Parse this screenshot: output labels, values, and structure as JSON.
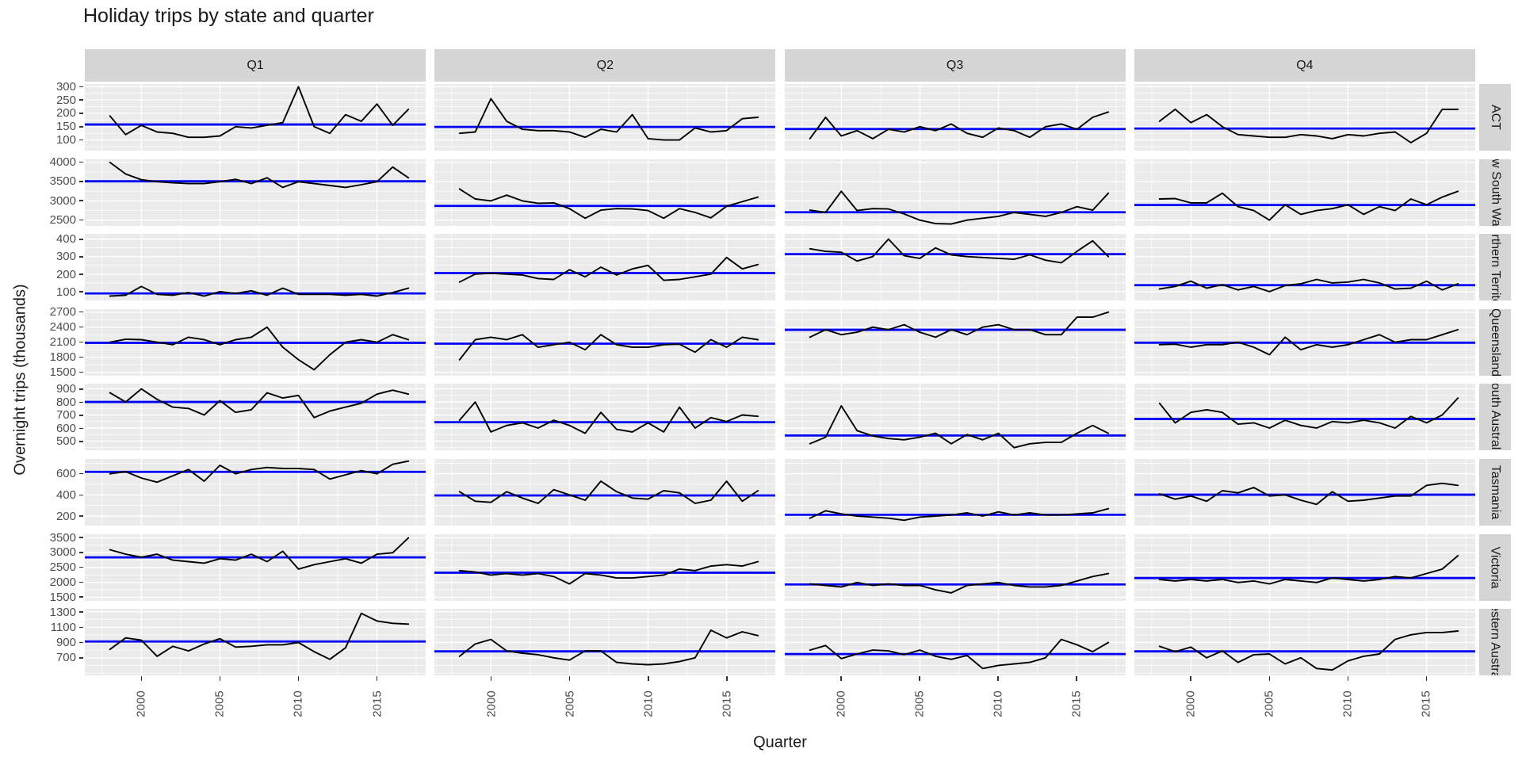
{
  "chart_data": {
    "type": "line",
    "title": "Holiday trips by state and quarter",
    "xlabel": "Quarter",
    "ylabel": "Overnight trips (thousands)",
    "facet_columns": [
      "Q1",
      "Q2",
      "Q3",
      "Q4"
    ],
    "x_years": [
      1998,
      1999,
      2000,
      2001,
      2002,
      2003,
      2004,
      2005,
      2006,
      2007,
      2008,
      2009,
      2010,
      2011,
      2012,
      2013,
      2014,
      2015,
      2016,
      2017
    ],
    "x_ticks": [
      2000,
      2005,
      2010,
      2015
    ],
    "grid": true,
    "legend": "none",
    "panel_bg": "#ebebeb",
    "strip_bg": "#d5d5d5",
    "grid_color": "#ffffff",
    "line_color": "#000000",
    "mean_line_color": "#0000f5",
    "tick_text_color": "#4d4d4d",
    "rows": [
      {
        "state": "ACT",
        "strip_label": "ACT",
        "ylim": [
          60,
          310
        ],
        "yticks": [
          100,
          150,
          200,
          250,
          300
        ],
        "series": {
          "Q1": {
            "mean": 158,
            "values": [
              190,
              120,
              155,
              130,
              125,
              110,
              110,
              115,
              150,
              145,
              155,
              165,
              300,
              150,
              125,
              195,
              170,
              235,
              155,
              215
            ]
          },
          "Q2": {
            "mean": 149,
            "values": [
              125,
              130,
              255,
              170,
              140,
              135,
              135,
              130,
              110,
              140,
              130,
              195,
              105,
              100,
              100,
              145,
              130,
              135,
              180,
              185
            ]
          },
          "Q3": {
            "mean": 141,
            "values": [
              105,
              185,
              115,
              135,
              105,
              140,
              130,
              150,
              135,
              160,
              125,
              110,
              145,
              135,
              110,
              150,
              160,
              140,
              185,
              205
            ]
          },
          "Q4": {
            "mean": 143,
            "values": [
              170,
              215,
              165,
              195,
              150,
              120,
              115,
              110,
              110,
              120,
              115,
              105,
              120,
              115,
              125,
              130,
              90,
              125,
              215,
              215
            ]
          }
        }
      },
      {
        "state": "New South Wales",
        "strip_label": "New South Wales",
        "ylim": [
          2350,
          4080
        ],
        "yticks": [
          2500,
          3000,
          3500,
          4000
        ],
        "series": {
          "Q1": {
            "mean": 3510,
            "values": [
              4000,
              3700,
              3550,
              3500,
              3470,
              3450,
              3450,
              3500,
              3560,
              3450,
              3600,
              3350,
              3500,
              3450,
              3400,
              3350,
              3420,
              3500,
              3880,
              3600
            ]
          },
          "Q2": {
            "mean": 2870,
            "values": [
              3310,
              3050,
              3000,
              3150,
              3000,
              2940,
              2950,
              2800,
              2550,
              2760,
              2800,
              2790,
              2750,
              2550,
              2800,
              2700,
              2560,
              2860,
              2980,
              3100
            ]
          },
          "Q3": {
            "mean": 2706,
            "values": [
              2760,
              2700,
              3250,
              2750,
              2800,
              2790,
              2660,
              2500,
              2410,
              2400,
              2500,
              2550,
              2600,
              2700,
              2650,
              2600,
              2700,
              2850,
              2760,
              3200
            ]
          },
          "Q4": {
            "mean": 2893,
            "values": [
              3050,
              3060,
              2950,
              2950,
              3200,
              2850,
              2750,
              2500,
              2900,
              2650,
              2750,
              2800,
              2900,
              2650,
              2850,
              2750,
              3050,
              2900,
              3100,
              3250
            ]
          }
        }
      },
      {
        "state": "Northern Territory",
        "strip_label": "Northern Territory",
        "ylim": [
          50,
          430
        ],
        "yticks": [
          100,
          200,
          300,
          400
        ],
        "series": {
          "Q1": {
            "mean": 90,
            "values": [
              75,
              80,
              130,
              85,
              80,
              95,
              75,
              100,
              90,
              105,
              80,
              120,
              85,
              85,
              85,
              80,
              85,
              75,
              95,
              120
            ]
          },
          "Q2": {
            "mean": 206,
            "values": [
              155,
              200,
              205,
              200,
              195,
              175,
              170,
              225,
              185,
              240,
              195,
              230,
              250,
              165,
              170,
              185,
              200,
              295,
              230,
              255
            ]
          },
          "Q3": {
            "mean": 314,
            "values": [
              345,
              330,
              325,
              275,
              300,
              400,
              305,
              290,
              350,
              310,
              300,
              295,
              290,
              285,
              310,
              280,
              265,
              330,
              390,
              300
            ]
          },
          "Q4": {
            "mean": 137,
            "values": [
              115,
              130,
              160,
              120,
              140,
              110,
              130,
              100,
              135,
              145,
              170,
              150,
              155,
              170,
              150,
              115,
              120,
              160,
              110,
              145
            ]
          }
        }
      },
      {
        "state": "Queensland",
        "strip_label": "Queensland",
        "ylim": [
          1430,
          2760
        ],
        "yticks": [
          1500,
          1800,
          2100,
          2400,
          2700
        ],
        "series": {
          "Q1": {
            "mean": 2088,
            "values": [
              2100,
              2160,
              2150,
              2100,
              2050,
              2200,
              2150,
              2050,
              2150,
              2200,
              2400,
              2000,
              1750,
              1550,
              1850,
              2100,
              2150,
              2100,
              2250,
              2150
            ]
          },
          "Q2": {
            "mean": 2071,
            "values": [
              1750,
              2150,
              2200,
              2150,
              2250,
              2000,
              2050,
              2100,
              1950,
              2250,
              2050,
              2000,
              2000,
              2050,
              2060,
              1900,
              2150,
              2000,
              2200,
              2150
            ]
          },
          "Q3": {
            "mean": 2347,
            "values": [
              2200,
              2350,
              2250,
              2300,
              2400,
              2350,
              2450,
              2300,
              2200,
              2350,
              2250,
              2400,
              2450,
              2350,
              2350,
              2250,
              2250,
              2600,
              2600,
              2700
            ]
          },
          "Q4": {
            "mean": 2090,
            "values": [
              2050,
              2060,
              2000,
              2050,
              2050,
              2100,
              2000,
              1850,
              2200,
              1950,
              2050,
              2000,
              2050,
              2150,
              2250,
              2100,
              2150,
              2150,
              2250,
              2350
            ]
          }
        }
      },
      {
        "state": "South Australia",
        "strip_label": "South Australia",
        "ylim": [
          430,
          940
        ],
        "yticks": [
          500,
          600,
          700,
          800,
          900
        ],
        "series": {
          "Q1": {
            "mean": 800,
            "values": [
              870,
              800,
              900,
              820,
              760,
              750,
              700,
              810,
              720,
              740,
              870,
              830,
              850,
              680,
              730,
              760,
              790,
              860,
              890,
              860
            ]
          },
          "Q2": {
            "mean": 645,
            "values": [
              660,
              800,
              570,
              620,
              640,
              600,
              660,
              620,
              560,
              720,
              590,
              570,
              640,
              570,
              760,
              600,
              680,
              650,
              700,
              690
            ]
          },
          "Q3": {
            "mean": 543,
            "values": [
              480,
              530,
              770,
              580,
              540,
              520,
              510,
              530,
              560,
              480,
              550,
              510,
              560,
              450,
              480,
              490,
              490,
              560,
              620,
              560
            ]
          },
          "Q4": {
            "mean": 670,
            "values": [
              790,
              640,
              720,
              740,
              720,
              630,
              640,
              600,
              660,
              620,
              600,
              650,
              640,
              660,
              640,
              600,
              690,
              640,
              700,
              830
            ]
          }
        }
      },
      {
        "state": "Tasmania",
        "strip_label": "Tasmania",
        "ylim": [
          110,
          740
        ],
        "yticks": [
          200,
          400,
          600
        ],
        "series": {
          "Q1": {
            "mean": 618,
            "values": [
              600,
              620,
              560,
              520,
              580,
              640,
              530,
              680,
              600,
              640,
              660,
              650,
              650,
              640,
              550,
              590,
              630,
              600,
              690,
              720
            ]
          },
          "Q2": {
            "mean": 395,
            "values": [
              430,
              340,
              330,
              430,
              370,
              320,
              450,
              400,
              350,
              530,
              430,
              370,
              360,
              440,
              420,
              320,
              350,
              530,
              340,
              440
            ]
          },
          "Q3": {
            "mean": 212,
            "values": [
              180,
              250,
              220,
              200,
              190,
              180,
              160,
              190,
              200,
              210,
              230,
              200,
              240,
              210,
              230,
              210,
              210,
              220,
              230,
              270
            ]
          },
          "Q4": {
            "mean": 402,
            "values": [
              410,
              360,
              390,
              340,
              440,
              420,
              470,
              390,
              400,
              350,
              310,
              430,
              340,
              350,
              370,
              390,
              390,
              490,
              510,
              490
            ]
          }
        }
      },
      {
        "state": "Victoria",
        "strip_label": "Victoria",
        "ylim": [
          1380,
          3620
        ],
        "yticks": [
          1500,
          2000,
          2500,
          3000,
          3500
        ],
        "series": {
          "Q1": {
            "mean": 2843,
            "values": [
              3100,
              2950,
              2850,
              2950,
              2750,
              2700,
              2650,
              2800,
              2750,
              2950,
              2700,
              3050,
              2450,
              2600,
              2700,
              2800,
              2650,
              2950,
              3000,
              3500
            ]
          },
          "Q2": {
            "mean": 2328,
            "values": [
              2400,
              2350,
              2250,
              2300,
              2250,
              2300,
              2200,
              1950,
              2300,
              2250,
              2150,
              2150,
              2200,
              2250,
              2450,
              2400,
              2550,
              2600,
              2550,
              2700
            ]
          },
          "Q3": {
            "mean": 1933,
            "values": [
              1950,
              1900,
              1850,
              2000,
              1900,
              1950,
              1900,
              1900,
              1750,
              1650,
              1900,
              1950,
              2000,
              1900,
              1850,
              1850,
              1900,
              2050,
              2200,
              2300
            ]
          },
          "Q4": {
            "mean": 2148,
            "values": [
              2100,
              2050,
              2100,
              2050,
              2100,
              2000,
              2050,
              1950,
              2100,
              2050,
              2000,
              2150,
              2100,
              2050,
              2100,
              2200,
              2150,
              2300,
              2450,
              2900
            ]
          }
        }
      },
      {
        "state": "Western Australia",
        "strip_label": "Western Australia",
        "ylim": [
          470,
          1340
        ],
        "yticks": [
          700,
          900,
          1100,
          1300
        ],
        "series": {
          "Q1": {
            "mean": 913,
            "values": [
              810,
              960,
              930,
              720,
              850,
              790,
              880,
              950,
              840,
              850,
              870,
              870,
              900,
              780,
              680,
              830,
              1280,
              1180,
              1150,
              1140
            ]
          },
          "Q2": {
            "mean": 784,
            "values": [
              720,
              880,
              940,
              790,
              760,
              740,
              700,
              670,
              790,
              790,
              640,
              620,
              610,
              620,
              650,
              700,
              1060,
              960,
              1040,
              990
            ]
          },
          "Q3": {
            "mean": 748,
            "values": [
              800,
              860,
              690,
              750,
              800,
              790,
              740,
              800,
              720,
              680,
              730,
              560,
              600,
              620,
              640,
              700,
              940,
              870,
              780,
              900
            ]
          },
          "Q4": {
            "mean": 784,
            "values": [
              850,
              780,
              840,
              700,
              790,
              640,
              740,
              750,
              620,
              700,
              560,
              540,
              660,
              720,
              750,
              940,
              1000,
              1030,
              1030,
              1050
            ]
          }
        }
      }
    ]
  }
}
